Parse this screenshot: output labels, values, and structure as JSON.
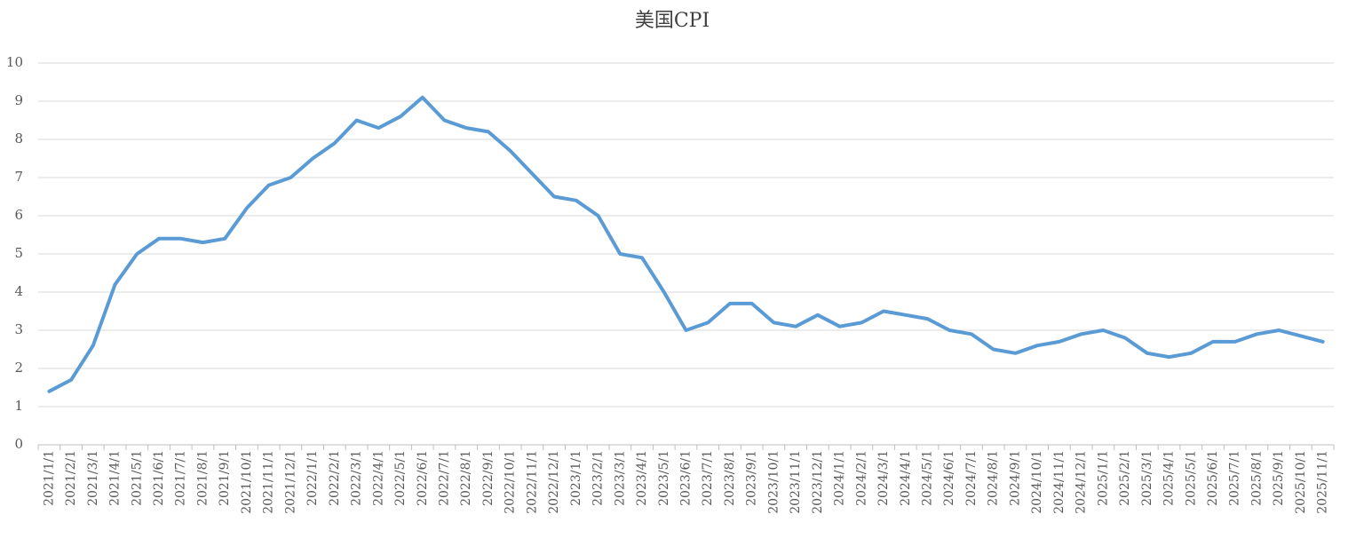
{
  "chart_data": {
    "type": "line",
    "title": "美国CPI",
    "categories": [
      "2021/1/1",
      "2021/2/1",
      "2021/3/1",
      "2021/4/1",
      "2021/5/1",
      "2021/6/1",
      "2021/7/1",
      "2021/8/1",
      "2021/9/1",
      "2021/10/1",
      "2021/11/1",
      "2021/12/1",
      "2022/1/1",
      "2022/2/1",
      "2022/3/1",
      "2022/4/1",
      "2022/5/1",
      "2022/6/1",
      "2022/7/1",
      "2022/8/1",
      "2022/9/1",
      "2022/10/1",
      "2022/11/1",
      "2022/12/1",
      "2023/1/1",
      "2023/2/1",
      "2023/3/1",
      "2023/4/1",
      "2023/5/1",
      "2023/6/1",
      "2023/7/1",
      "2023/8/1",
      "2023/9/1",
      "2023/10/1",
      "2023/11/1",
      "2023/12/1",
      "2024/1/1",
      "2024/2/1",
      "2024/3/1",
      "2024/4/1",
      "2024/5/1",
      "2024/6/1",
      "2024/7/1",
      "2024/8/1",
      "2024/9/1",
      "2024/10/1",
      "2024/11/1",
      "2024/12/1",
      "2025/1/1",
      "2025/2/1",
      "2025/3/1",
      "2025/4/1",
      "2025/5/1",
      "2025/6/1",
      "2025/7/1",
      "2025/8/1",
      "2025/9/1",
      "2025/10/1",
      "2025/11/1"
    ],
    "values": [
      1.4,
      1.7,
      2.6,
      4.2,
      5.0,
      5.4,
      5.4,
      5.3,
      5.4,
      6.2,
      6.8,
      7.0,
      7.5,
      7.9,
      8.5,
      8.3,
      8.6,
      9.1,
      8.5,
      8.3,
      8.2,
      7.7,
      7.1,
      6.5,
      6.4,
      6.0,
      5.0,
      4.9,
      4.0,
      3.0,
      3.2,
      3.7,
      3.7,
      3.2,
      3.1,
      3.4,
      3.1,
      3.2,
      3.5,
      3.4,
      3.3,
      3.0,
      2.9,
      2.5,
      2.4,
      2.6,
      2.7,
      2.9,
      3.0,
      2.8,
      2.4,
      2.3,
      2.4,
      2.7,
      2.7,
      2.9,
      3.0,
      2.85,
      2.7
    ],
    "color": "#5b9bd5",
    "ylim": [
      0,
      10
    ],
    "yticks": [
      0,
      1,
      2,
      3,
      4,
      5,
      6,
      7,
      8,
      9,
      10
    ],
    "grid": true
  }
}
